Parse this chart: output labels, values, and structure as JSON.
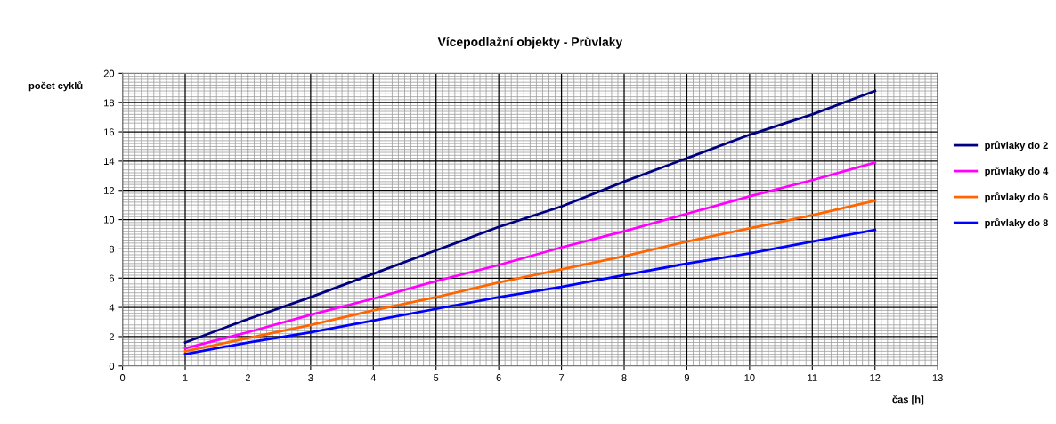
{
  "chart_data": {
    "type": "line",
    "title": "Vícepodlažní objekty - Průvlaky",
    "xlabel": "čas [h]",
    "ylabel": "počet cyklů",
    "x": [
      1,
      2,
      3,
      4,
      5,
      6,
      7,
      8,
      9,
      10,
      11,
      12
    ],
    "series": [
      {
        "name": "průvlaky do 2",
        "color": "#000080",
        "values": [
          1.6,
          3.2,
          4.7,
          6.3,
          7.9,
          9.5,
          10.9,
          12.6,
          14.2,
          15.8,
          17.2,
          18.8
        ]
      },
      {
        "name": "průvlaky do 4",
        "color": "#ff00ff",
        "values": [
          1.2,
          2.3,
          3.5,
          4.6,
          5.8,
          6.9,
          8.1,
          9.2,
          10.4,
          11.6,
          12.7,
          13.9
        ]
      },
      {
        "name": "průvlaky do 6",
        "color": "#ff6600",
        "values": [
          1.0,
          1.9,
          2.8,
          3.8,
          4.7,
          5.7,
          6.6,
          7.5,
          8.5,
          9.4,
          10.3,
          11.3
        ]
      },
      {
        "name": "průvlaky do 8",
        "color": "#0000ff",
        "values": [
          0.8,
          1.6,
          2.3,
          3.1,
          3.9,
          4.7,
          5.4,
          6.2,
          7.0,
          7.7,
          8.5,
          9.3
        ]
      }
    ],
    "xlim": [
      0,
      13
    ],
    "xticks": [
      0,
      1,
      2,
      3,
      4,
      5,
      6,
      7,
      8,
      9,
      10,
      11,
      12,
      13
    ],
    "ylim": [
      0,
      20
    ],
    "yticks": [
      0,
      2,
      4,
      6,
      8,
      10,
      12,
      14,
      16,
      18,
      20
    ],
    "grid": true,
    "legend": "right",
    "marker": "none",
    "line_style": "solid"
  }
}
